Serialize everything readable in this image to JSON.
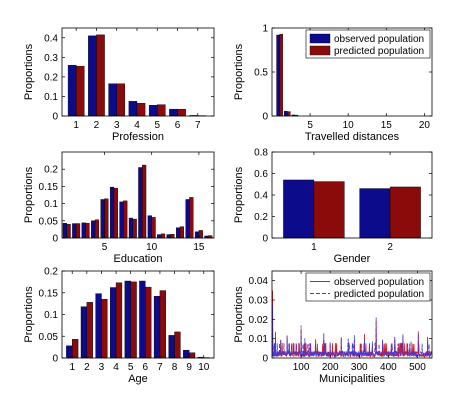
{
  "colors": {
    "observed": "#0b0b8c",
    "predicted": "#8b0a0a",
    "line_observed": "#e0161c",
    "line_predicted": "#3a3ae0"
  },
  "legend": {
    "observed": "observed population",
    "predicted": "predicted population"
  },
  "chart_data": [
    {
      "id": "profession",
      "type": "bar",
      "xlabel": "Profession",
      "ylabel": "Proportions",
      "xlim": [
        0.3,
        7.8
      ],
      "ylim": [
        0,
        0.45
      ],
      "xticks": [
        1,
        2,
        3,
        4,
        5,
        6,
        7
      ],
      "yticks": [
        0,
        0.1,
        0.2,
        0.3,
        0.4
      ],
      "x": [
        1,
        2,
        3,
        4,
        5,
        6,
        7
      ],
      "series": [
        {
          "key": "observed",
          "values": [
            0.26,
            0.41,
            0.165,
            0.075,
            0.055,
            0.035,
            0.003
          ]
        },
        {
          "key": "predicted",
          "values": [
            0.255,
            0.415,
            0.165,
            0.065,
            0.058,
            0.035,
            0.002
          ]
        }
      ],
      "legend": false
    },
    {
      "id": "distances",
      "type": "bar",
      "xlabel": "Travelled distances",
      "ylabel": "Proportions",
      "xlim": [
        0,
        21
      ],
      "ylim": [
        0,
        1
      ],
      "xticks": [
        5,
        10,
        15,
        20
      ],
      "yticks": [
        0,
        0.5,
        1
      ],
      "x": [
        1,
        2,
        3
      ],
      "series": [
        {
          "key": "observed",
          "values": [
            0.92,
            0.055,
            0.012
          ]
        },
        {
          "key": "predicted",
          "values": [
            0.93,
            0.05,
            0.01
          ]
        }
      ],
      "legend": true
    },
    {
      "id": "education",
      "type": "bar",
      "xlabel": "Education",
      "ylabel": "Proportions",
      "xlim": [
        0.5,
        16.6
      ],
      "ylim": [
        0,
        0.25
      ],
      "xticks": [
        5,
        10,
        15
      ],
      "yticks": [
        0,
        0.05,
        0.1,
        0.15,
        0.2
      ],
      "x": [
        1,
        2,
        3,
        4,
        5,
        6,
        7,
        8,
        9,
        10,
        11,
        12,
        13,
        14,
        15,
        16
      ],
      "series": [
        {
          "key": "observed",
          "values": [
            0.043,
            0.042,
            0.044,
            0.05,
            0.112,
            0.148,
            0.105,
            0.058,
            0.205,
            0.065,
            0.01,
            0.01,
            0.03,
            0.112,
            0.018,
            0.006
          ]
        },
        {
          "key": "predicted",
          "values": [
            0.04,
            0.042,
            0.043,
            0.053,
            0.114,
            0.145,
            0.108,
            0.055,
            0.212,
            0.06,
            0.012,
            0.011,
            0.033,
            0.118,
            0.022,
            0.007
          ]
        }
      ],
      "legend": false
    },
    {
      "id": "gender",
      "type": "bar",
      "xlabel": "Gender",
      "ylabel": "Proportions",
      "xlim": [
        0.45,
        2.55
      ],
      "ylim": [
        0,
        0.8
      ],
      "xticks": [
        1,
        2
      ],
      "yticks": [
        0,
        0.2,
        0.4,
        0.6,
        0.8
      ],
      "x": [
        1,
        2
      ],
      "series": [
        {
          "key": "observed",
          "values": [
            0.54,
            0.46
          ]
        },
        {
          "key": "predicted",
          "values": [
            0.525,
            0.475
          ]
        }
      ],
      "legend": false
    },
    {
      "id": "age",
      "type": "bar",
      "xlabel": "Age",
      "ylabel": "Proportions",
      "xlim": [
        0.3,
        10.7
      ],
      "ylim": [
        0,
        0.2
      ],
      "xticks": [
        1,
        2,
        3,
        4,
        5,
        6,
        7,
        8,
        9,
        10
      ],
      "yticks": [
        0,
        0.05,
        0.1,
        0.15,
        0.2
      ],
      "x": [
        1,
        2,
        3,
        4,
        5,
        6,
        7,
        8,
        9,
        10
      ],
      "series": [
        {
          "key": "observed",
          "values": [
            0.028,
            0.118,
            0.148,
            0.162,
            0.177,
            0.177,
            0.142,
            0.052,
            0.018,
            0.002
          ]
        },
        {
          "key": "predicted",
          "values": [
            0.043,
            0.128,
            0.135,
            0.173,
            0.175,
            0.163,
            0.155,
            0.06,
            0.012,
            0.001
          ]
        }
      ],
      "legend": false
    },
    {
      "id": "municipalities",
      "type": "line",
      "xlabel": "Municipalities",
      "ylabel": "Proportions",
      "xlim": [
        0,
        550
      ],
      "ylim": [
        0,
        0.045
      ],
      "xticks": [
        100,
        200,
        300,
        400,
        500
      ],
      "yticks": [
        0,
        0.01,
        0.02,
        0.03,
        0.04
      ],
      "n_points": 550,
      "spikes": [
        [
          2,
          0.031
        ],
        [
          12,
          0.012
        ],
        [
          30,
          0.009
        ],
        [
          52,
          0.011
        ],
        [
          75,
          0.008
        ],
        [
          100,
          0.018
        ],
        [
          113,
          0.009
        ],
        [
          150,
          0.009
        ],
        [
          178,
          0.012
        ],
        [
          200,
          0.008
        ],
        [
          238,
          0.012
        ],
        [
          262,
          0.009
        ],
        [
          283,
          0.011
        ],
        [
          318,
          0.011
        ],
        [
          345,
          0.008
        ],
        [
          358,
          0.02
        ],
        [
          380,
          0.009
        ],
        [
          410,
          0.007
        ],
        [
          422,
          0.011
        ],
        [
          450,
          0.013
        ],
        [
          478,
          0.008
        ],
        [
          503,
          0.012
        ],
        [
          535,
          0.01
        ]
      ],
      "baseline": 0.002,
      "series": [
        {
          "key": "observed",
          "style": "solid"
        },
        {
          "key": "predicted",
          "style": "dashed"
        }
      ],
      "legend": true
    }
  ]
}
